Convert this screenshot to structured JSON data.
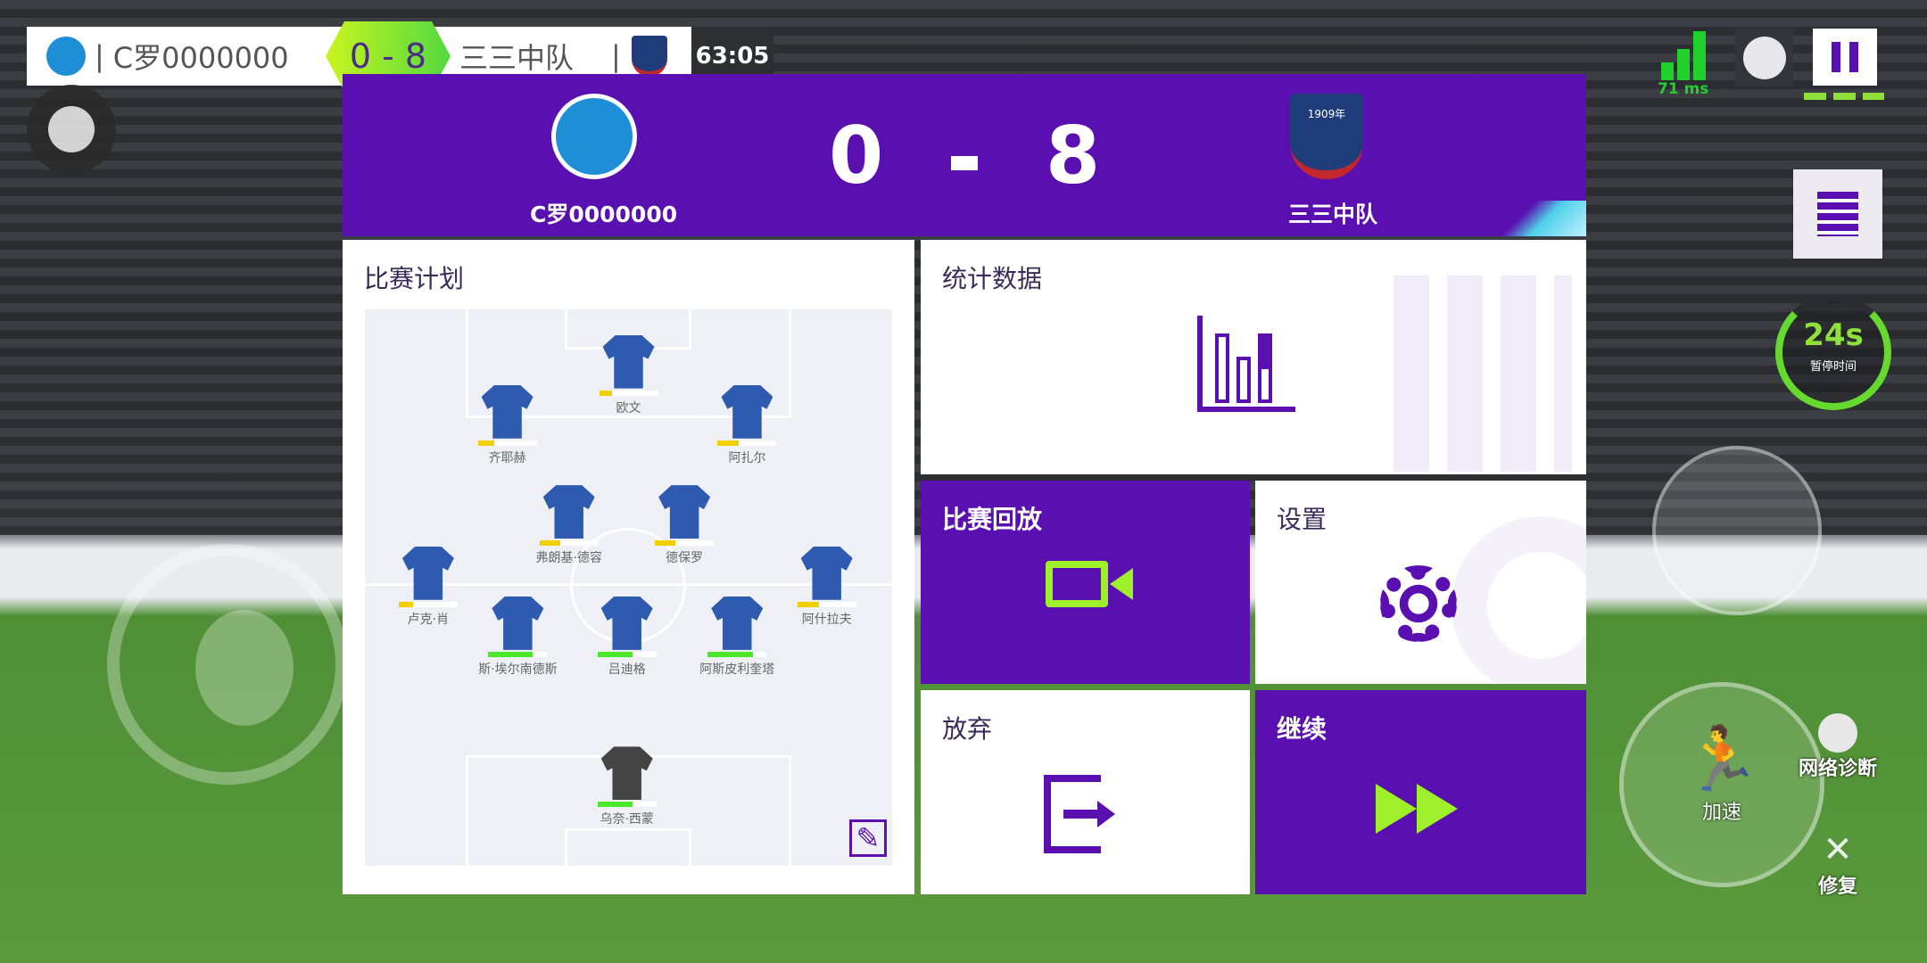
{
  "scoreboard": {
    "home_name": "C罗0000000",
    "score": "0 - 8",
    "away_name": "三三中队",
    "clock": "63:05"
  },
  "hud": {
    "ping": "71 ms",
    "pause_timer": "24s",
    "pause_timer_label": "暂停时间",
    "sprint_label": "加速",
    "network_label": "网络诊断",
    "repair_label": "修复"
  },
  "match_header": {
    "home_name": "C罗0000000",
    "home_score": "0",
    "separator": "-",
    "away_score": "8",
    "away_name": "三三中队",
    "away_badge_text": "1909年"
  },
  "menu": {
    "plan_title": "比赛计划",
    "stats_title": "统计数据",
    "replay_title": "比赛回放",
    "settings_title": "设置",
    "abandon_title": "放弃",
    "continue_title": "继续"
  },
  "players": [
    {
      "name": "欧文",
      "stamina": 22,
      "color": "#f2d000"
    },
    {
      "name": "齐耶赫",
      "stamina": 28,
      "color": "#f2d000"
    },
    {
      "name": "阿扎尔",
      "stamina": 35,
      "color": "#f2d000"
    },
    {
      "name": "弗朗基·德容",
      "stamina": 35,
      "color": "#f2d000"
    },
    {
      "name": "德保罗",
      "stamina": 35,
      "color": "#f2d000"
    },
    {
      "name": "卢克·肖",
      "stamina": 25,
      "color": "#f2d000"
    },
    {
      "name": "阿什拉夫",
      "stamina": 37,
      "color": "#f2d000"
    },
    {
      "name": "斯·埃尔南德斯",
      "stamina": 75,
      "color": "#4ce62a"
    },
    {
      "name": "吕迪格",
      "stamina": 60,
      "color": "#4ce62a"
    },
    {
      "name": "阿斯皮利奎塔",
      "stamina": 77,
      "color": "#4ce62a"
    },
    {
      "name": "乌奈·西蒙",
      "stamina": 60,
      "color": "#4ce62a"
    }
  ],
  "colors": {
    "accent": "#5a0fb0",
    "lime": "#9ef02a",
    "shirt": "#2e5bb0"
  }
}
